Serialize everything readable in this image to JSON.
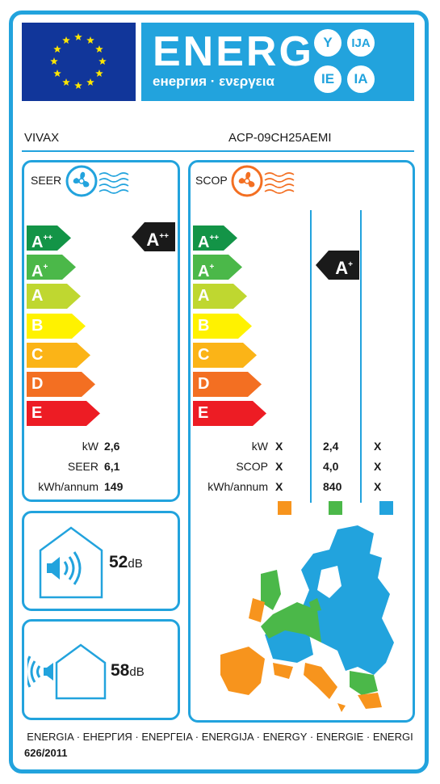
{
  "header": {
    "energy_word": "ENERG",
    "energy_sub": "енергия · ενεργεια",
    "lang_codes": [
      "Y",
      "IJA",
      "IE",
      "IA"
    ],
    "eu_flag_icon": "eu-flag-icon"
  },
  "supplier": {
    "brand": "VIVAX",
    "model": "ACP-09CH25AEMI"
  },
  "classes": [
    "A",
    "A",
    "A",
    "B",
    "C",
    "D",
    "E"
  ],
  "class_superscripts": [
    "++",
    "+",
    "",
    "",
    "",
    "",
    ""
  ],
  "class_colors": [
    "#139447",
    "#4bb849",
    "#bfd730",
    "#fff200",
    "#fbb417",
    "#f36f22",
    "#ed1c24"
  ],
  "seer": {
    "title": "SEER",
    "icon": "cooling-fan-icon",
    "rating": "A",
    "rating_sup": "++",
    "labels": [
      "kW",
      "SEER",
      "kWh/annum"
    ],
    "values": [
      "2,6",
      "6,1",
      "149"
    ]
  },
  "scop": {
    "title": "SCOP",
    "icon": "heating-fan-icon",
    "rating": "A",
    "rating_sup": "+",
    "labels": [
      "kW",
      "SCOP",
      "kWh/annum"
    ],
    "col1": [
      "X",
      "X",
      "X"
    ],
    "col2": [
      "2,4",
      "4,0",
      "840"
    ],
    "col3": [
      "X",
      "X",
      "X"
    ],
    "zone_colors": [
      "#f7941d",
      "#4bb849",
      "#22a3dd"
    ]
  },
  "noise": {
    "indoor": {
      "value": "52",
      "unit": "dB",
      "icon": "indoor-unit-sound-icon"
    },
    "outdoor": {
      "value": "58",
      "unit": "dB",
      "icon": "outdoor-unit-sound-icon"
    }
  },
  "map_icon": "europe-climate-zone-map",
  "footer": {
    "languages": "ENERGIA · ЕНЕРГИЯ · ΕΝΕΡΓΕΙΑ · ENERGIJA · ENERGY · ENERGIE · ENERGI",
    "regulation": "626/2011"
  }
}
